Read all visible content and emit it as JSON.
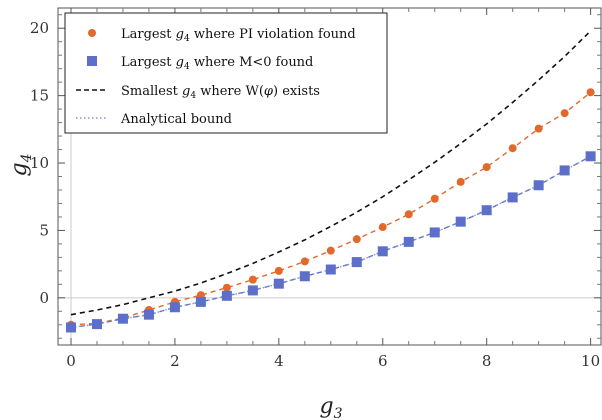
{
  "chart_data": {
    "type": "scatter",
    "xlabel": "g3",
    "ylabel": "g4",
    "xlim": [
      -0.25,
      10.2
    ],
    "ylim": [
      -3.5,
      21.5
    ],
    "xticks": [
      0,
      2,
      4,
      6,
      8,
      10
    ],
    "yticks": [
      0,
      5,
      10,
      15,
      20
    ],
    "grid": false,
    "legend_position": "top-left",
    "colors": {
      "orange": "#e2692b",
      "blue": "#5d6fc8",
      "black": "#111111",
      "blue_dotted": "#8794d6",
      "zero_line": "#cccccc"
    },
    "x": [
      0,
      0.5,
      1,
      1.5,
      2,
      2.5,
      3,
      3.5,
      4,
      4.5,
      5,
      5.5,
      6,
      6.5,
      7,
      7.5,
      8,
      8.5,
      9,
      9.5,
      10
    ],
    "series": [
      {
        "name": "Largest g4 where PI violation found",
        "kind": "points",
        "marker": "circle",
        "color": "#e2692b",
        "values": [
          -2.0,
          -1.9,
          -1.5,
          -0.9,
          -0.3,
          0.2,
          0.75,
          1.35,
          2.0,
          2.7,
          3.5,
          4.35,
          5.25,
          6.2,
          7.35,
          8.6,
          9.7,
          11.1,
          12.55,
          13.7,
          15.25
        ]
      },
      {
        "name": "Largest g4 where M<0 found",
        "kind": "points",
        "marker": "square",
        "color": "#5d6fc8",
        "values": [
          -2.2,
          -1.95,
          -1.55,
          -1.25,
          -0.7,
          -0.3,
          0.15,
          0.55,
          1.05,
          1.6,
          2.1,
          2.65,
          3.45,
          4.15,
          4.85,
          5.65,
          6.5,
          7.45,
          8.35,
          9.45,
          10.5
        ]
      },
      {
        "name": "Smallest g4 where W(φ) exists",
        "kind": "line",
        "style": "dashed",
        "color": "#111111",
        "values": [
          -1.25,
          -0.9,
          -0.5,
          0.0,
          0.5,
          1.1,
          1.8,
          2.55,
          3.4,
          4.3,
          5.3,
          6.35,
          7.5,
          8.75,
          10.05,
          11.45,
          12.9,
          14.5,
          16.15,
          17.9,
          19.8
        ]
      },
      {
        "name": "Largest g4 where PI violation found (fit)",
        "kind": "line",
        "style": "dashed",
        "color": "#e2692b",
        "values": [
          -2.0,
          -1.9,
          -1.5,
          -0.9,
          -0.3,
          0.2,
          0.75,
          1.35,
          2.0,
          2.7,
          3.5,
          4.35,
          5.25,
          6.2,
          7.35,
          8.6,
          9.7,
          11.1,
          12.55,
          13.7,
          15.25
        ]
      },
      {
        "name": "Largest g4 where M<0 found (fit)",
        "kind": "line",
        "style": "dashed",
        "color": "#5d6fc8",
        "values": [
          -2.2,
          -1.95,
          -1.55,
          -1.25,
          -0.7,
          -0.3,
          0.15,
          0.55,
          1.05,
          1.6,
          2.1,
          2.65,
          3.45,
          4.15,
          4.85,
          5.65,
          6.5,
          7.45,
          8.35,
          9.45,
          10.5
        ]
      },
      {
        "name": "Analytical bound",
        "kind": "line",
        "style": "dotted",
        "color": "#8794d6",
        "values": [
          -2.2,
          -1.95,
          -1.55,
          -1.25,
          -0.7,
          -0.3,
          0.15,
          0.55,
          1.05,
          1.6,
          2.1,
          2.65,
          3.45,
          4.15,
          4.85,
          5.65,
          6.5,
          7.45,
          8.35,
          9.45,
          10.5
        ]
      }
    ],
    "legend": [
      {
        "label_pre": "Largest ",
        "label_var": "g",
        "label_sub": "4",
        "label_post": " where PI violation found",
        "marker": "circle",
        "color": "#e2692b"
      },
      {
        "label_pre": "Largest ",
        "label_var": "g",
        "label_sub": "4",
        "label_post": " where M<0 found",
        "marker": "square",
        "color": "#5d6fc8"
      },
      {
        "label_pre": "Smallest ",
        "label_var": "g",
        "label_sub": "4",
        "label_post": " where W(",
        "label_phi": "φ",
        "label_end": ") exists",
        "marker": "dashed",
        "color": "#111111"
      },
      {
        "label_pre": "Analytical bound",
        "marker": "dotted",
        "color": "#8794d6"
      }
    ]
  }
}
